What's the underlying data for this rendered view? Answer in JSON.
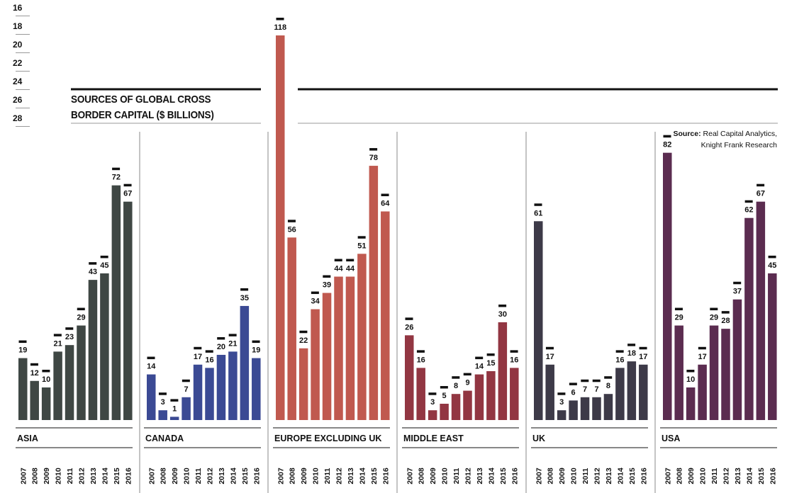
{
  "title_line1": "SOURCES OF GLOBAL CROSS",
  "title_line2": "BORDER CAPITAL ($ BILLIONS)",
  "source_label": "Source:",
  "source_text": "Real Capital Analytics, Knight Frank Research",
  "stray_numbers": [
    "16",
    "18",
    "20",
    "22",
    "24",
    "26",
    "28"
  ],
  "colors": {
    "ASIA": "#3f4744",
    "CANADA": "#3b4a94",
    "EUROPE EXCLUDING UK": "#c0594f",
    "MIDDLE EAST": "#923642",
    "UK": "#3d3a48",
    "USA": "#5b2c50"
  },
  "chart_data": {
    "type": "bar",
    "title": "SOURCES OF GLOBAL CROSS BORDER CAPITAL ($ BILLIONS)",
    "categories": [
      "2007",
      "2008",
      "2009",
      "2010",
      "2011",
      "2012",
      "2013",
      "2014",
      "2015",
      "2016"
    ],
    "ylim": [
      0,
      118
    ],
    "grid": false,
    "series": [
      {
        "name": "ASIA",
        "values": [
          19,
          12,
          10,
          21,
          23,
          29,
          43,
          45,
          72,
          67
        ]
      },
      {
        "name": "CANADA",
        "values": [
          14,
          3,
          1,
          7,
          17,
          16,
          20,
          21,
          35,
          19
        ]
      },
      {
        "name": "EUROPE EXCLUDING UK",
        "values": [
          118,
          56,
          22,
          34,
          39,
          44,
          44,
          51,
          78,
          64
        ]
      },
      {
        "name": "MIDDLE EAST",
        "values": [
          26,
          16,
          3,
          5,
          8,
          9,
          14,
          15,
          30,
          16
        ]
      },
      {
        "name": "UK",
        "values": [
          61,
          17,
          3,
          6,
          7,
          7,
          8,
          16,
          18,
          17
        ]
      },
      {
        "name": "USA",
        "values": [
          82,
          29,
          10,
          17,
          29,
          28,
          37,
          62,
          67,
          45
        ]
      }
    ]
  }
}
